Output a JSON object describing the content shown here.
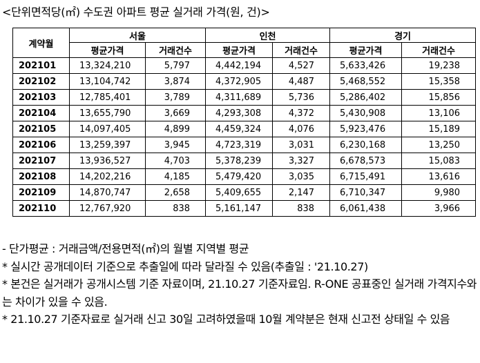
{
  "title": "<단위면적당(㎡) 수도권 아파트 평균 실거래 가격(원, 건)>",
  "table": {
    "month_header": "계약월",
    "regions": [
      "서울",
      "인천",
      "경기"
    ],
    "sub_headers": [
      "평균가격",
      "거래건수"
    ],
    "rows": [
      {
        "month": "202101",
        "seoul_price": "13,324,210",
        "seoul_count": "5,797",
        "incheon_price": "4,442,194",
        "incheon_count": "4,527",
        "gyeonggi_price": "5,633,426",
        "gyeonggi_count": "19,238"
      },
      {
        "month": "202102",
        "seoul_price": "13,104,742",
        "seoul_count": "3,874",
        "incheon_price": "4,372,905",
        "incheon_count": "4,487",
        "gyeonggi_price": "5,468,552",
        "gyeonggi_count": "15,358"
      },
      {
        "month": "202103",
        "seoul_price": "12,785,401",
        "seoul_count": "3,789",
        "incheon_price": "4,311,689",
        "incheon_count": "5,736",
        "gyeonggi_price": "5,286,402",
        "gyeonggi_count": "15,856"
      },
      {
        "month": "202104",
        "seoul_price": "13,655,790",
        "seoul_count": "3,669",
        "incheon_price": "4,293,308",
        "incheon_count": "4,372",
        "gyeonggi_price": "5,430,908",
        "gyeonggi_count": "13,106"
      },
      {
        "month": "202105",
        "seoul_price": "14,097,405",
        "seoul_count": "4,899",
        "incheon_price": "4,459,324",
        "incheon_count": "4,076",
        "gyeonggi_price": "5,923,476",
        "gyeonggi_count": "15,189"
      },
      {
        "month": "202106",
        "seoul_price": "13,259,397",
        "seoul_count": "3,945",
        "incheon_price": "4,723,319",
        "incheon_count": "3,031",
        "gyeonggi_price": "6,230,168",
        "gyeonggi_count": "13,250"
      },
      {
        "month": "202107",
        "seoul_price": "13,936,527",
        "seoul_count": "4,703",
        "incheon_price": "5,378,239",
        "incheon_count": "3,327",
        "gyeonggi_price": "6,678,573",
        "gyeonggi_count": "15,083"
      },
      {
        "month": "202108",
        "seoul_price": "14,202,216",
        "seoul_count": "4,185",
        "incheon_price": "5,479,420",
        "incheon_count": "3,035",
        "gyeonggi_price": "6,715,491",
        "gyeonggi_count": "13,616"
      },
      {
        "month": "202109",
        "seoul_price": "14,870,747",
        "seoul_count": "2,658",
        "incheon_price": "5,409,655",
        "incheon_count": "2,147",
        "gyeonggi_price": "6,710,347",
        "gyeonggi_count": "9,980"
      },
      {
        "month": "202110",
        "seoul_price": "12,767,920",
        "seoul_count": "838",
        "incheon_price": "5,161,147",
        "incheon_count": "838",
        "gyeonggi_price": "6,061,438",
        "gyeonggi_count": "3,966"
      }
    ]
  },
  "notes": [
    " - 단가평균 : 거래금액/전용면적(㎡)의 월별 지역별 평균",
    " * 실시간 공개데이터 기준으로 추출일에 따라 달라질 수 있음(추출일 : '21.10.27)",
    " * 본건은 실거래가 공개시스템 기준 자료이며, 21.10.27 기준자료임. R-ONE 공표중인 실거래 가격지수와는 차이가 있을 수 있음.",
    " * 21.10.27 기준자료로 실거래 신고 30일 고려하였을때 10월 계약분은 현재 신고전 상태일 수 있음"
  ]
}
